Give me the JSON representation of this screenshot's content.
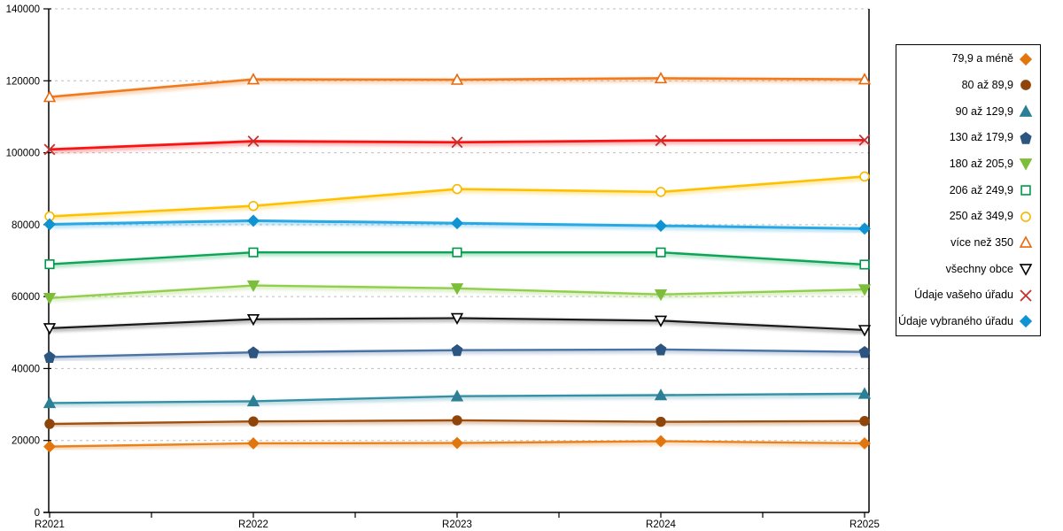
{
  "chart_data": {
    "type": "line",
    "title": "",
    "xlabel": "",
    "ylabel": "",
    "categories": [
      "R2021",
      "R2022",
      "R2023",
      "R2024",
      "R2025"
    ],
    "y_axis": {
      "min": 0,
      "max": 140000,
      "step": 20000,
      "tick_labels": [
        "0",
        "20000",
        "40000",
        "60000",
        "80000",
        "100000",
        "120000",
        "140000"
      ]
    },
    "grid": "horizontal-dashed",
    "legend_position": "right",
    "series": [
      {
        "name": "79,9 a méně",
        "marker": "diamond",
        "style": "filled",
        "color": "#E8821C",
        "marker_color": "#E2760E",
        "line_width": 2.4,
        "values": [
          18300,
          19200,
          19300,
          19800,
          19200
        ]
      },
      {
        "name": "80 až 89,9",
        "marker": "circle",
        "style": "filled",
        "color": "#A0500E",
        "marker_color": "#8F4509",
        "line_width": 2.4,
        "values": [
          24600,
          25300,
          25600,
          25200,
          25400
        ]
      },
      {
        "name": "90 až 129,9",
        "marker": "triangle-up",
        "style": "filled",
        "color": "#3690A5",
        "marker_color": "#2C7F95",
        "line_width": 2.4,
        "values": [
          30400,
          30900,
          32300,
          32600,
          33000
        ]
      },
      {
        "name": "130 až 179,9",
        "marker": "pentagon",
        "style": "filled",
        "color": "#4A72A3",
        "marker_color": "#2C5580",
        "line_width": 2.4,
        "values": [
          43200,
          44500,
          45100,
          45300,
          44600
        ]
      },
      {
        "name": "180 až 205,9",
        "marker": "triangle-down",
        "style": "filled",
        "color": "#92CE4E",
        "marker_color": "#7CBE3A",
        "line_width": 2.4,
        "values": [
          59600,
          63100,
          62300,
          60600,
          62000
        ]
      },
      {
        "name": "206 až 249,9",
        "marker": "square",
        "style": "open",
        "color": "#0DA455",
        "marker_color": "#00994C",
        "line_width": 2.4,
        "values": [
          69000,
          72300,
          72300,
          72300,
          68900
        ]
      },
      {
        "name": "250 až 349,9",
        "marker": "circle",
        "style": "open",
        "color": "#FFC000",
        "marker_color": "#F5B800",
        "line_width": 2.6,
        "values": [
          82300,
          85200,
          89900,
          89100,
          93400
        ]
      },
      {
        "name": "více než 350",
        "marker": "triangle-up",
        "style": "open",
        "color": "#F07B1F",
        "marker_color": "#E8690E",
        "line_width": 2.6,
        "values": [
          115500,
          120400,
          120300,
          120700,
          120400
        ]
      },
      {
        "name": "všechny obce",
        "marker": "triangle-down",
        "style": "open",
        "color": "#1A1A1A",
        "marker_color": "#000000",
        "line_width": 2.2,
        "values": [
          51200,
          53700,
          54000,
          53300,
          50700
        ]
      },
      {
        "name": "Údaje vašeho úřadu",
        "marker": "x",
        "style": "open",
        "color": "#F91414",
        "marker_color": "#C33030",
        "line_width": 2.8,
        "values": [
          100900,
          103200,
          102900,
          103400,
          103500
        ]
      },
      {
        "name": "Údaje vybraného úřadu",
        "marker": "diamond",
        "style": "filled",
        "color": "#29A8E3",
        "marker_color": "#0F93D2",
        "line_width": 3.0,
        "values": [
          80100,
          81100,
          80400,
          79700,
          78900
        ]
      }
    ]
  },
  "colors": {
    "background": "#FFFFFF",
    "grid": "#BEBEBE",
    "axis": "#000000",
    "tick_text": "#000000",
    "legend_border": "#000000",
    "open_marker_fill": "#FFFFFF"
  }
}
